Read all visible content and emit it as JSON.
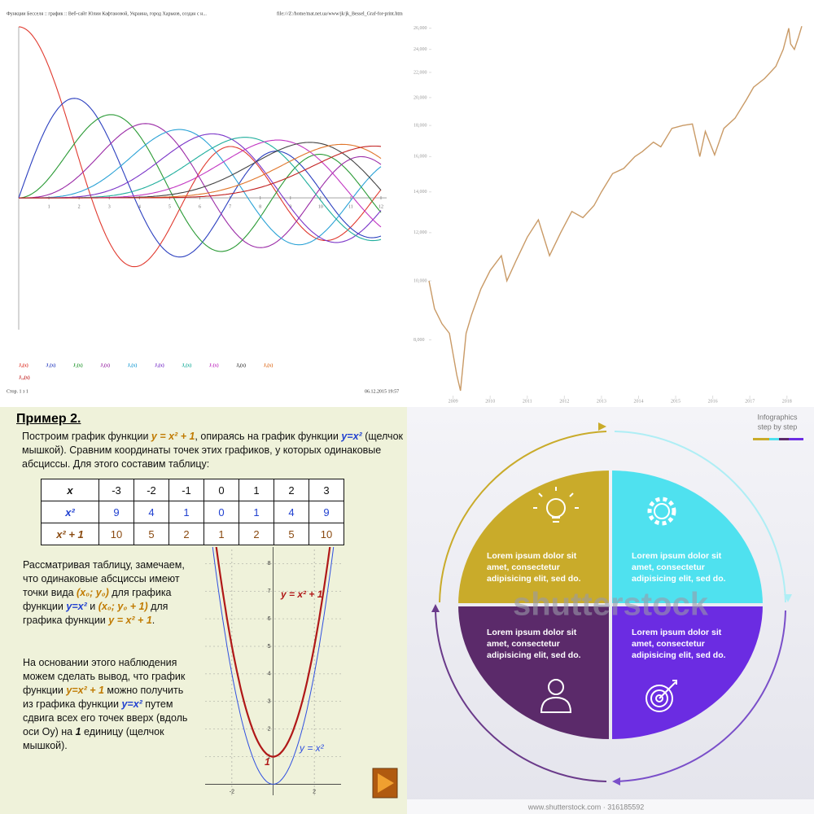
{
  "chart_data": [
    {
      "type": "bessel",
      "header_left": "Функции Бесселя :: график :: Веб-сайт Юлии Кафтановой, Украина, город Харьков, создан с н...",
      "header_right": "file:///Z:/home/mat.net.ua/www/jk/jk_Bessel_Graf-for-print.htm",
      "footer_left": "Стор. 1 з 1",
      "footer_right": "06.12.2015 19:57",
      "xlim": [
        0,
        12
      ],
      "ylim": [
        -0.771,
        1
      ],
      "xticks": [
        1,
        2,
        3,
        4,
        5,
        6,
        7,
        8,
        9,
        10,
        11,
        12
      ],
      "series": [
        {
          "name": "J₀(x)",
          "color": "#e0392e"
        },
        {
          "name": "J₁(x)",
          "color": "#2b3fbf"
        },
        {
          "name": "J₂(x)",
          "color": "#2a9a35"
        },
        {
          "name": "J₃(x)",
          "color": "#9a2aa6"
        },
        {
          "name": "J₄(x)",
          "color": "#2aa2d6"
        },
        {
          "name": "J₅(x)",
          "color": "#7a34c8"
        },
        {
          "name": "J₆(x)",
          "color": "#1fae9c"
        },
        {
          "name": "J₇(x)",
          "color": "#c236c2"
        },
        {
          "name": "J₈(x)",
          "color": "#444444"
        },
        {
          "name": "J₉(x)",
          "color": "#e0752a"
        },
        {
          "name": "J₁₀(x)",
          "color": "#c22222"
        }
      ]
    },
    {
      "type": "line",
      "log_scale": true,
      "color": "#c99a66",
      "xlim": [
        2008.35,
        2018.4
      ],
      "ylim": [
        6400,
        27200
      ],
      "xticks": [
        2009,
        2010,
        2011,
        2012,
        2013,
        2014,
        2015,
        2016,
        2017,
        2018
      ],
      "yticks": [
        {
          "value": 8000,
          "label": "8,000"
        },
        {
          "value": 10000,
          "label": "10,000"
        },
        {
          "value": 12000,
          "label": "12,000"
        },
        {
          "value": 14000,
          "label": "14,000"
        },
        {
          "value": 16000,
          "label": "16,000"
        },
        {
          "value": 18000,
          "label": "18,000"
        },
        {
          "value": 20000,
          "label": "20,000"
        },
        {
          "value": 22000,
          "label": "22,000"
        },
        {
          "value": 24000,
          "label": "24,000"
        },
        {
          "value": 26000,
          "label": "26,000"
        }
      ],
      "x": [
        2008.35,
        2008.5,
        2008.7,
        2008.9,
        2009.1,
        2009.2,
        2009.35,
        2009.5,
        2009.75,
        2010.0,
        2010.3,
        2010.45,
        2010.7,
        2011.0,
        2011.3,
        2011.6,
        2011.9,
        2012.2,
        2012.5,
        2012.8,
        2013.0,
        2013.3,
        2013.6,
        2013.9,
        2014.1,
        2014.4,
        2014.6,
        2014.9,
        2015.2,
        2015.45,
        2015.65,
        2015.8,
        2016.05,
        2016.3,
        2016.6,
        2016.9,
        2017.1,
        2017.4,
        2017.7,
        2017.9,
        2018.05,
        2018.1,
        2018.2,
        2018.3,
        2018.4
      ],
      "values": [
        10000,
        9000,
        8500,
        8200,
        7000,
        6600,
        8200,
        8800,
        9700,
        10400,
        11000,
        10000,
        10800,
        11800,
        12600,
        11000,
        12000,
        13000,
        12700,
        13300,
        14000,
        15000,
        15300,
        16000,
        16300,
        16900,
        16600,
        17800,
        18000,
        18100,
        16000,
        17600,
        16100,
        17800,
        18500,
        19800,
        20800,
        21500,
        22500,
        24000,
        26000,
        24500,
        24000,
        25000,
        26200
      ]
    }
  ],
  "lesson": {
    "title": "Пример 2.",
    "intro": [
      "Построим график функции ",
      "y = x² + 1",
      ", опираясь на график функции ",
      "y=x²",
      " (щелчок мышкой). Сравним координаты точек этих графиков, у которых одинаковые абсциссы. Для этого составим  таблицу:"
    ],
    "table": [
      {
        "label": "x",
        "values": [
          -3,
          -2,
          -1,
          0,
          1,
          2,
          3
        ]
      },
      {
        "label": "x²",
        "values": [
          9,
          4,
          1,
          0,
          1,
          4,
          9
        ]
      },
      {
        "label": "x² + 1",
        "values": [
          10,
          5,
          2,
          1,
          2,
          5,
          10
        ]
      }
    ],
    "observation": [
      "Рассматривая таблицу, замечаем, что одинаковые абсциссы имеют точки вида ",
      "(x₀; y₀)",
      " для графика функции ",
      "y=x²",
      " и ",
      "(x₀; y₀ + 1)",
      " для графика функции ",
      "y = x² + 1",
      "."
    ],
    "conclusion": [
      "На основании этого наблюдения можем сделать вывод, что график функции ",
      "y=x² + 1",
      " можно получить из графика функции ",
      "y=x²",
      " путем сдвига всех его точек вверх (вдоль оси Оу) на ",
      "1",
      " единицу (щелчок мышкой)."
    ],
    "graph": {
      "xlim": [
        -3.3,
        3.3
      ],
      "ylim": [
        -0.4,
        8.6
      ],
      "xticks": [
        -2,
        2
      ],
      "yticks": [
        1,
        2,
        3,
        4,
        5,
        6,
        7,
        8
      ],
      "curve_labels": [
        "y = x² + 1",
        "y = x²"
      ],
      "vertex_label": "1"
    }
  },
  "infographic": {
    "header": [
      "Infographics",
      "step by step"
    ],
    "blocks": [
      "Lorem ipsum dolor sit amet, consectetur adipisicing elit, sed do.",
      "Lorem ipsum dolor sit amet, consectetur adipisicing elit, sed do.",
      "Lorem ipsum dolor sit amet, consectetur adipisicing elit, sed do.",
      "Lorem ipsum dolor sit amet, consectetur adipisicing elit, sed do."
    ],
    "watermark": "shutterstock",
    "footer": "www.shutterstock.com · 316185592"
  }
}
